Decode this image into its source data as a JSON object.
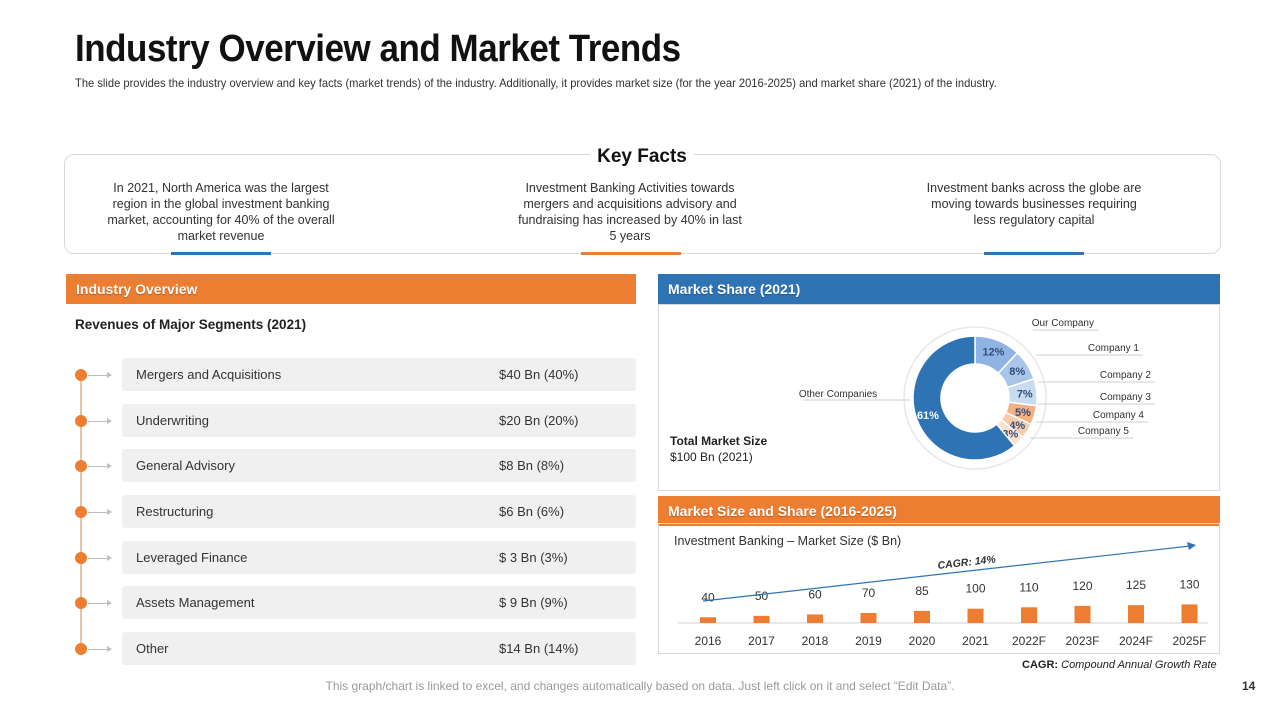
{
  "title": "Industry Overview and Market Trends",
  "subtitle": "The slide provides the industry overview and key facts (market trends) of the industry. Additionally, it provides market size (for the year 2016-2025) and market share (2021) of the industry.",
  "key_facts": {
    "title": "Key Facts",
    "items": [
      "In 2021, North America was the largest region in the global investment banking market, accounting for 40% of the overall market revenue",
      "Investment Banking Activities towards mergers and acquisitions advisory and fundraising has increased by 40% in last 5 years",
      "Investment banks across the globe are moving towards businesses requiring less regulatory capital"
    ]
  },
  "industry_overview": {
    "header": "Industry Overview",
    "segments_heading": "Revenues of Major Segments (2021)",
    "segments": [
      {
        "name": "Mergers and Acquisitions",
        "value": "$40 Bn (40%)"
      },
      {
        "name": "Underwriting",
        "value": "$20 Bn (20%)"
      },
      {
        "name": "General Advisory",
        "value": "$8 Bn (8%)"
      },
      {
        "name": "Restructuring",
        "value": "$6 Bn (6%)"
      },
      {
        "name": "Leveraged Finance",
        "value": "$ 3 Bn (3%)"
      },
      {
        "name": "Assets Management",
        "value": "$ 9 Bn (9%)"
      },
      {
        "name": "Other",
        "value": "$14 Bn (14%)"
      }
    ]
  },
  "market_share": {
    "header": "Market Share (2021)",
    "total_label": "Total Market Size",
    "total_value": "$100 Bn (2021)"
  },
  "market_size": {
    "header": "Market Size and Share (2016-2025)",
    "chart_title": "Investment Banking – Market Size ($ Bn)",
    "cagr_label": "CAGR: 14%",
    "note_bold": "CAGR:",
    "note_italic": "Compound Annual Growth Rate"
  },
  "chart_data": [
    {
      "type": "pie",
      "categories": [
        "Our Company",
        "Company 1",
        "Company 2",
        "Company 3",
        "Company 4",
        "Company 5",
        "Other Companies"
      ],
      "values": [
        12,
        8,
        7,
        5,
        4,
        3,
        61
      ],
      "data_labels": [
        "12%",
        "8%",
        "7%",
        "5%",
        "4%",
        "3%",
        "61%"
      ],
      "colors": [
        "#8FB4E3",
        "#A9C6EA",
        "#C9DBF1",
        "#F4B183",
        "#F8CBAD",
        "#FBE0CC",
        "#2E74B5"
      ],
      "donut": true
    },
    {
      "type": "bar",
      "categories": [
        "2016",
        "2017",
        "2018",
        "2019",
        "2020",
        "2021",
        "2022F",
        "2023F",
        "2024F",
        "2025F"
      ],
      "values": [
        40,
        50,
        60,
        70,
        85,
        100,
        110,
        120,
        125,
        130
      ],
      "ylim": [
        0,
        700
      ],
      "color": "#ED7D31",
      "trend_arrow_color": "#2E74B5"
    }
  ],
  "footer_note": "This graph/chart is linked to excel, and changes automatically based on data. Just left click on it and select “Edit Data”.",
  "page_number": "14"
}
